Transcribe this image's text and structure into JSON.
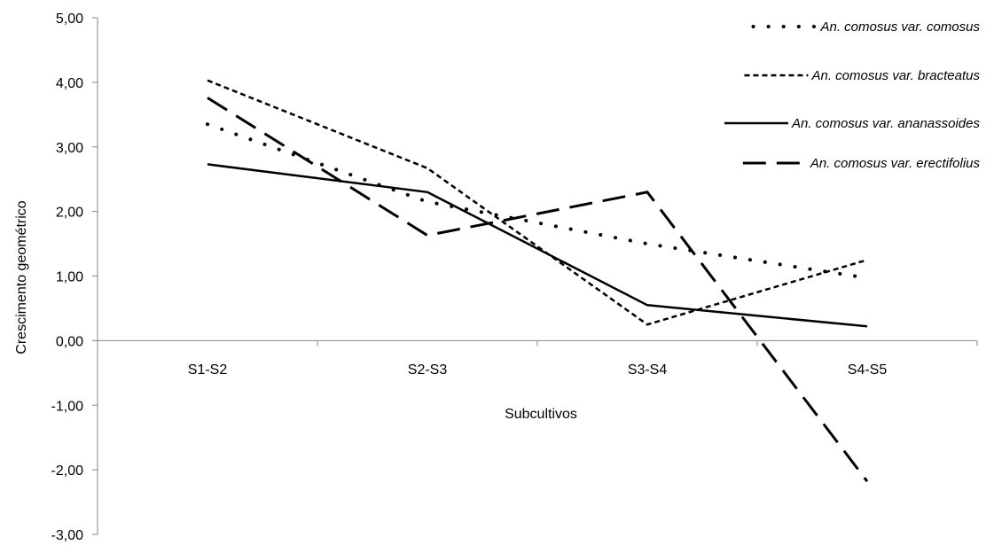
{
  "chart_data": {
    "type": "line",
    "title": "",
    "xlabel": "Subcultivos",
    "ylabel": "Crescimento geométrico",
    "categories": [
      "S1-S2",
      "S2-S3",
      "S3-S4",
      "S4-S5"
    ],
    "ylim": [
      -3,
      5
    ],
    "yticks": [
      5,
      4,
      3,
      2,
      1,
      0,
      -1,
      -2,
      -3
    ],
    "ytick_labels": [
      "5,00",
      "4,00",
      "3,00",
      "2,00",
      "1,00",
      "0,00",
      "-1,00",
      "-2,00",
      "-3,00"
    ],
    "grid": false,
    "legend_position": "top-right",
    "series": [
      {
        "name": "An. comosus var. comosus",
        "style": "dotted",
        "color": "#000000",
        "values": [
          3.35,
          2.15,
          1.5,
          0.97
        ]
      },
      {
        "name": "An. comosus var. bracteatus",
        "style": "short-dash",
        "color": "#000000",
        "values": [
          4.03,
          2.67,
          0.25,
          1.25
        ]
      },
      {
        "name": "An. comosus var. ananassoides",
        "style": "solid",
        "color": "#000000",
        "values": [
          2.73,
          2.3,
          0.55,
          0.22
        ]
      },
      {
        "name": "An. comosus var. erectifolius",
        "style": "long-dash",
        "color": "#000000",
        "values": [
          3.76,
          1.63,
          2.3,
          -2.18
        ]
      }
    ]
  }
}
